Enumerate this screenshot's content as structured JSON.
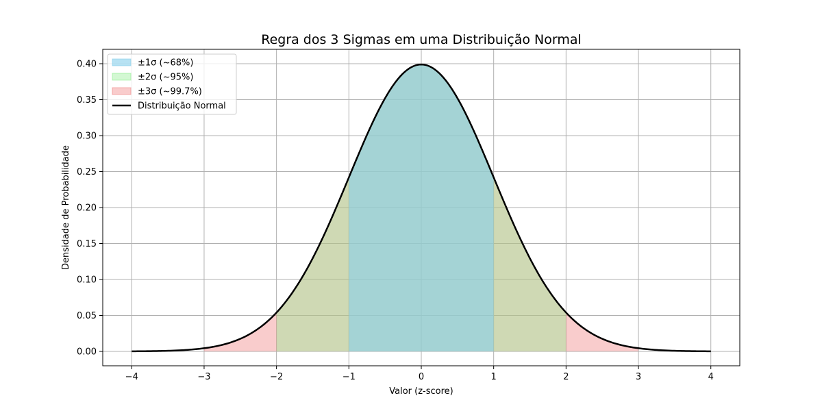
{
  "chart_data": {
    "type": "area",
    "title": "Regra dos 3 Sigmas em uma Distribuição Normal",
    "xlabel": "Valor (z-score)",
    "ylabel": "Densidade de Probabilidade",
    "xlim": [
      -4.4,
      4.4
    ],
    "ylim": [
      -0.02,
      0.42
    ],
    "xticks": [
      -4,
      -3,
      -2,
      -1,
      0,
      1,
      2,
      3,
      4
    ],
    "xtick_labels": [
      "−4",
      "−3",
      "−2",
      "−1",
      "0",
      "1",
      "2",
      "3",
      "4"
    ],
    "yticks": [
      0.0,
      0.05,
      0.1,
      0.15,
      0.2,
      0.25,
      0.3,
      0.35,
      0.4
    ],
    "ytick_labels": [
      "0.00",
      "0.05",
      "0.10",
      "0.15",
      "0.20",
      "0.25",
      "0.30",
      "0.35",
      "0.40"
    ],
    "grid": true,
    "legend_position": "top-left",
    "curve": {
      "name": "Distribuição Normal",
      "distribution": "normal",
      "mean": 0,
      "std": 1,
      "x_range": [
        -4,
        4
      ],
      "color": "#000000"
    },
    "bands": [
      {
        "name": "±3σ (~99.7%)",
        "x_range": [
          -3,
          3
        ],
        "color": "#f08080",
        "alpha": 0.4
      },
      {
        "name": "±2σ (~95%)",
        "x_range": [
          -2,
          2
        ],
        "color": "#90ee90",
        "alpha": 0.4
      },
      {
        "name": "±1σ (~68%)",
        "x_range": [
          -1,
          1
        ],
        "color": "#87ceeb",
        "alpha": 0.6
      }
    ],
    "legend_order": [
      "±1σ (~68%)",
      "±2σ (~95%)",
      "±3σ (~99.7%)",
      "Distribuição Normal"
    ]
  }
}
